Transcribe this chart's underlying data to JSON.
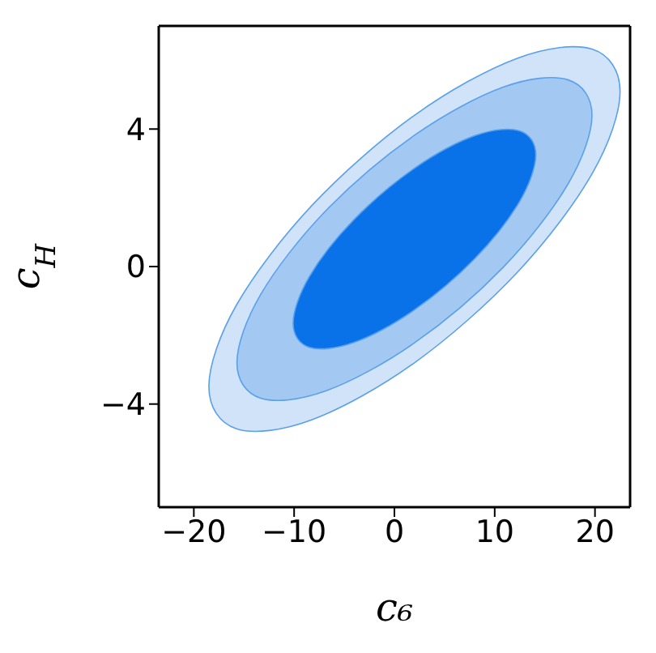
{
  "chart_data": {
    "type": "area",
    "xlabel": "c₆",
    "ylabel": "c$_{H}$",
    "xlim": [
      -23.5,
      23.5
    ],
    "ylim": [
      -7,
      7
    ],
    "xticks": [
      -20,
      -10,
      0,
      10,
      20
    ],
    "yticks": [
      -4,
      0,
      4
    ],
    "legend": false,
    "marker": "none",
    "series": [
      {
        "color": "#d0e3f9",
        "x": [
          22.5,
          19.75,
          12.25,
          2,
          -8.25,
          -15.75,
          -18.5,
          -15.75,
          -8.25,
          2,
          12.25,
          19.75
        ],
        "values": [
          5.09,
          6.32,
          6.06,
          4.4,
          1.77,
          -1.12,
          -3.49,
          -4.72,
          -4.46,
          -2.8,
          -0.17,
          2.72
        ]
      },
      {
        "color": "#a3c9f3",
        "x": [
          19.7,
          17.33,
          10.85,
          2,
          -6.85,
          -13.33,
          -15.7,
          -13.33,
          -6.85,
          2,
          10.85,
          17.33
        ],
        "values": [
          4.4,
          5.43,
          5.22,
          3.82,
          1.62,
          -0.81,
          -2.8,
          -3.83,
          -3.62,
          -2.22,
          -0.02,
          2.41
        ]
      },
      {
        "color": "#0a72e8",
        "x": [
          14.1,
          12.48,
          8.05,
          2,
          -4.05,
          -8.48,
          -10.1,
          -8.48,
          -4.05,
          2,
          8.05,
          12.48
        ],
        "values": [
          3.25,
          3.95,
          3.81,
          2.86,
          1.36,
          -0.29,
          -1.65,
          -2.35,
          -2.21,
          -1.26,
          0.24,
          1.89
        ]
      }
    ]
  }
}
